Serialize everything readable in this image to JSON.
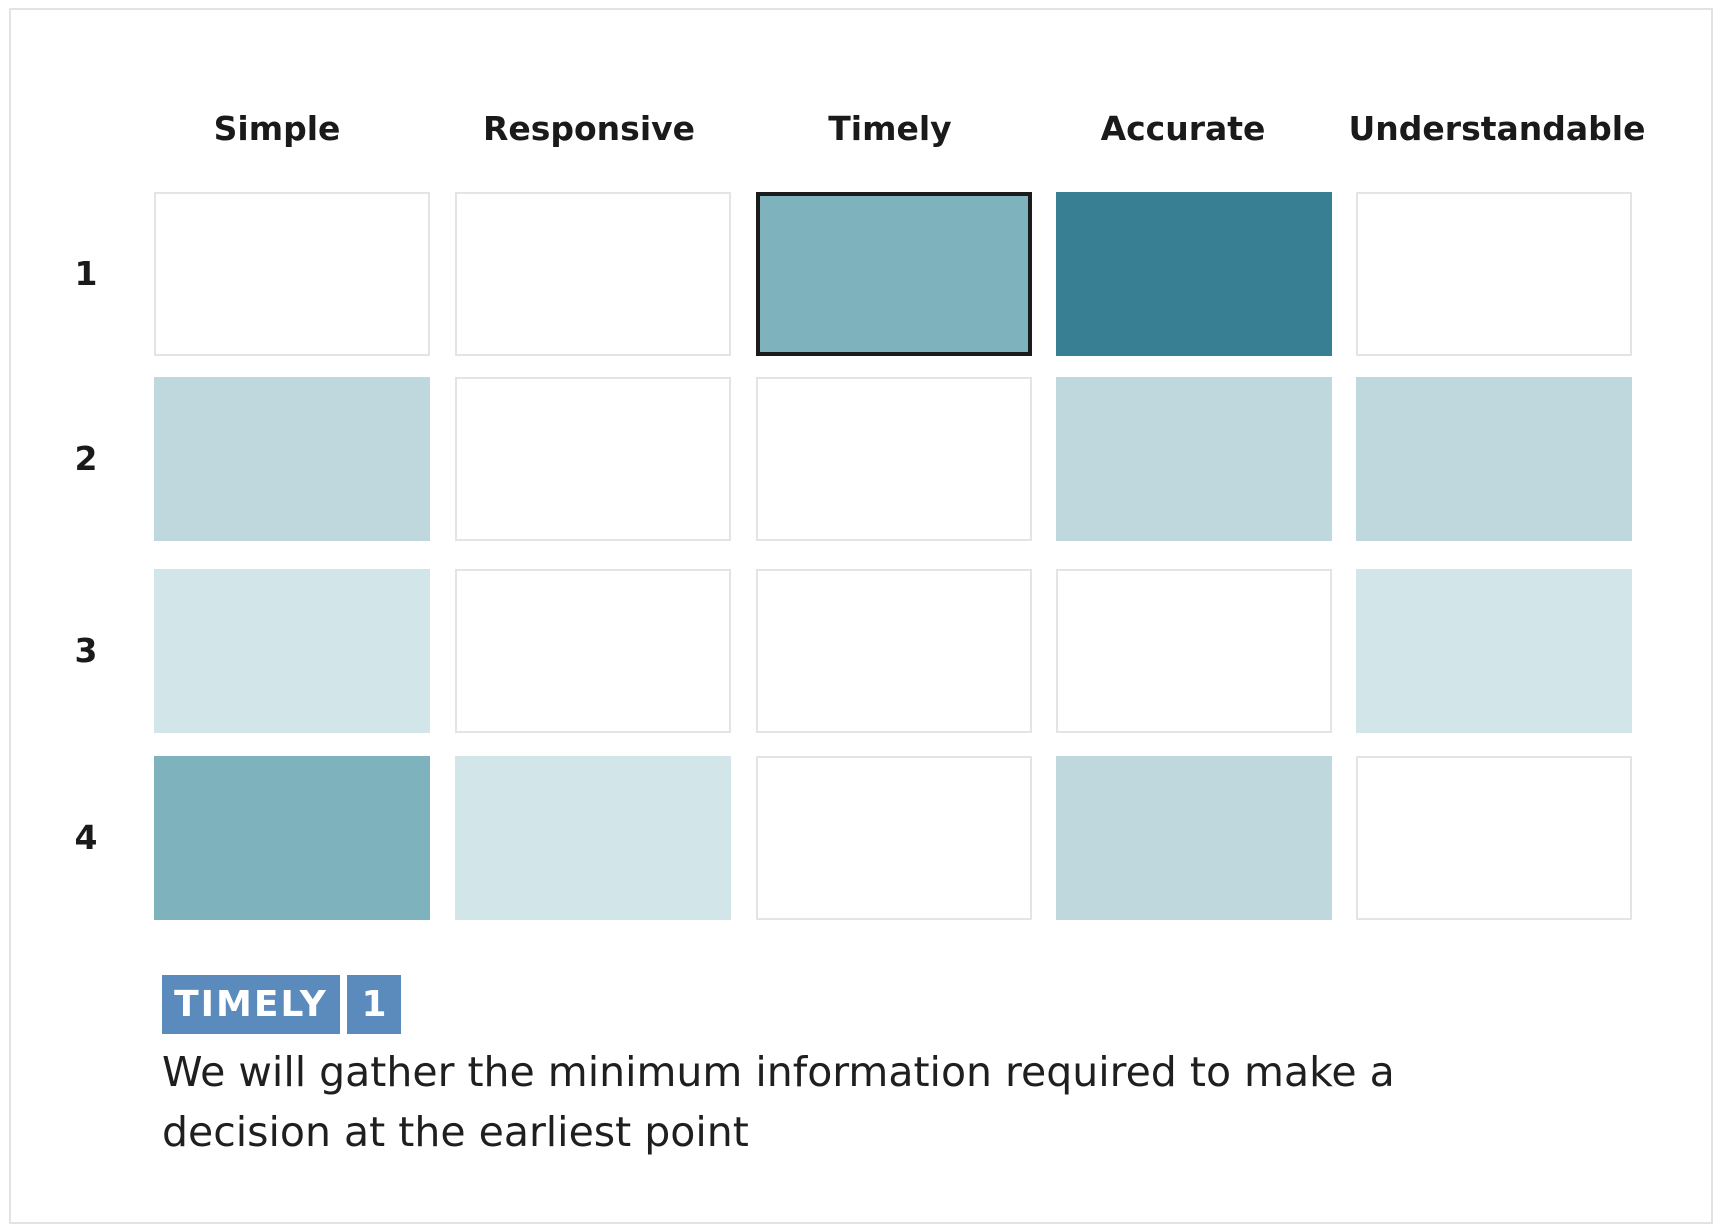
{
  "chart_data": {
    "type": "heatmap",
    "columns": [
      "Simple",
      "Responsive",
      "Timely",
      "Accurate",
      "Understandable"
    ],
    "rows": [
      "1",
      "2",
      "3",
      "4"
    ],
    "values": [
      [
        0,
        0,
        3,
        5,
        0
      ],
      [
        2,
        0,
        0,
        2,
        2
      ],
      [
        1,
        0,
        0,
        0,
        1
      ],
      [
        3,
        1,
        0,
        2,
        0
      ]
    ],
    "selected": {
      "row": "1",
      "column": "Timely"
    }
  },
  "colors": {
    "0": "#ffffff",
    "1": "#d2e5e9",
    "2": "#bed8de",
    "3": "#7eb2bd",
    "4": "#68a4b3",
    "5": "#387f93",
    "empty_border": "#e4e4e4",
    "selected_border": "#1b1b1b",
    "tag_bg": "#5b8bbd"
  },
  "selection_panel": {
    "tag_label": "TIMELY",
    "tag_level": "1",
    "description": "We will gather the minimum information required to make a decision at the earliest point"
  }
}
